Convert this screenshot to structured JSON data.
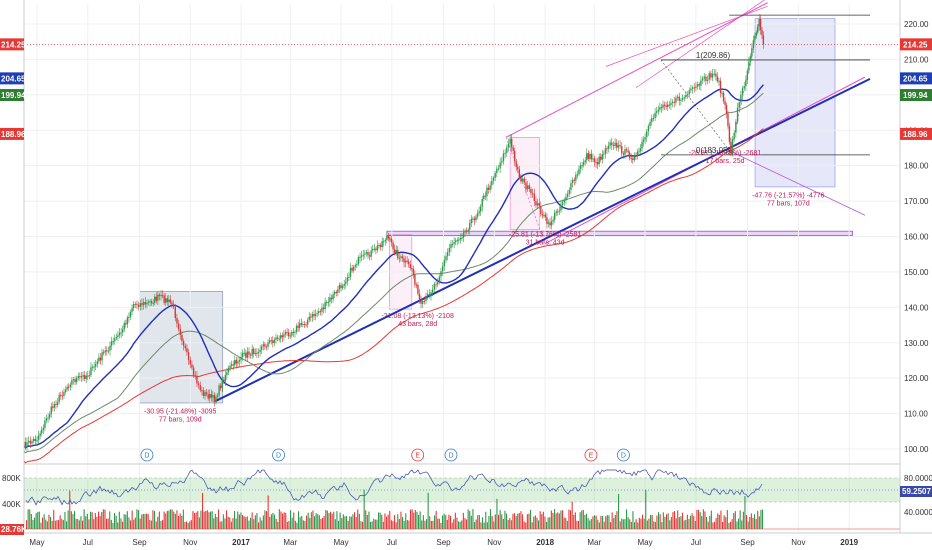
{
  "chart_data": {
    "type": "candlestick",
    "price_axis": {
      "ticks": [
        "100.00",
        "110.00",
        "120.00",
        "130.00",
        "140.00",
        "150.00",
        "160.00",
        "170.00",
        "180.00",
        "190.00",
        "200.00",
        "210.00",
        "220.00"
      ],
      "range": [
        96,
        224
      ]
    },
    "time_axis": {
      "labels": [
        "May",
        "Jul",
        "Sep",
        "Nov",
        "2017",
        "Mar",
        "May",
        "Jul",
        "Sep",
        "Nov",
        "2018",
        "Mar",
        "May",
        "Jul",
        "Sep",
        "Nov",
        "2019"
      ],
      "bold_labels": [
        "2017",
        "2018",
        "2019"
      ]
    },
    "price_tags": [
      {
        "value": "214.25",
        "color": "#e53935"
      },
      {
        "value": "204.65",
        "color": "#1e3fb4"
      },
      {
        "value": "199.94",
        "color": "#2e7d32"
      },
      {
        "value": "188.96",
        "color": "#e53935"
      }
    ],
    "annotations": [
      {
        "lines": [
          "-30.95 (-21.48%) -3095",
          "77 bars, 109d"
        ],
        "color": "#b00020"
      },
      {
        "lines": [
          "-21.08 (-13.13%) -2108",
          "43 bars, 28d"
        ],
        "color": "#c2185b"
      },
      {
        "lines": [
          "-25.81 (-13.76%) -2581",
          "31 bars, 43d"
        ],
        "color": "#c2185b"
      },
      {
        "lines": [
          "-26.81 (-13.78%) -2681",
          "17 bars, 25d"
        ],
        "color": "#c2185b"
      },
      {
        "lines": [
          "-47.76 (-21.57%) -4776",
          "77 bars, 107d"
        ],
        "color": "#b00020"
      }
    ],
    "fib_levels": [
      {
        "label": "1(209.86)",
        "value": 209.86
      },
      {
        "label": "0(183.05)",
        "value": 183.05
      }
    ],
    "events": [
      "D",
      "D",
      "E",
      "D",
      "E",
      "D"
    ],
    "price_path": [
      [
        "2016-04-15",
        101
      ],
      [
        "2016-05-01",
        103
      ],
      [
        "2016-05-20",
        112
      ],
      [
        "2016-06-10",
        119
      ],
      [
        "2016-07-01",
        121
      ],
      [
        "2016-07-20",
        127
      ],
      [
        "2016-08-10",
        133
      ],
      [
        "2016-08-25",
        141
      ],
      [
        "2016-09-10",
        141
      ],
      [
        "2016-09-25",
        143
      ],
      [
        "2016-10-10",
        141
      ],
      [
        "2016-10-20",
        133
      ],
      [
        "2016-11-01",
        123
      ],
      [
        "2016-11-15",
        116
      ],
      [
        "2016-11-30",
        114
      ],
      [
        "2016-12-15",
        122
      ],
      [
        "2017-01-01",
        126
      ],
      [
        "2017-01-20",
        128
      ],
      [
        "2017-02-10",
        131
      ],
      [
        "2017-03-01",
        133
      ],
      [
        "2017-03-20",
        136
      ],
      [
        "2017-04-10",
        140
      ],
      [
        "2017-05-01",
        146
      ],
      [
        "2017-05-20",
        153
      ],
      [
        "2017-06-10",
        156
      ],
      [
        "2017-06-25",
        160
      ],
      [
        "2017-07-10",
        154
      ],
      [
        "2017-07-25",
        151
      ],
      [
        "2017-08-05",
        140
      ],
      [
        "2017-08-15",
        144
      ],
      [
        "2017-08-25",
        148
      ],
      [
        "2017-09-10",
        158
      ],
      [
        "2017-09-25",
        161
      ],
      [
        "2017-10-10",
        166
      ],
      [
        "2017-10-25",
        174
      ],
      [
        "2017-11-10",
        182
      ],
      [
        "2017-11-20",
        187
      ],
      [
        "2017-12-01",
        177
      ],
      [
        "2017-12-15",
        172
      ],
      [
        "2017-12-25",
        168
      ],
      [
        "2018-01-05",
        163
      ],
      [
        "2018-01-20",
        169
      ],
      [
        "2018-02-05",
        176
      ],
      [
        "2018-02-20",
        183
      ],
      [
        "2018-03-05",
        181
      ],
      [
        "2018-03-20",
        187
      ],
      [
        "2018-04-05",
        184
      ],
      [
        "2018-04-20",
        182
      ],
      [
        "2018-05-01",
        188
      ],
      [
        "2018-05-15",
        196
      ],
      [
        "2018-05-30",
        198
      ],
      [
        "2018-06-15",
        199
      ],
      [
        "2018-07-01",
        202
      ],
      [
        "2018-07-15",
        205
      ],
      [
        "2018-07-25",
        206
      ],
      [
        "2018-08-05",
        197
      ],
      [
        "2018-08-12",
        184
      ],
      [
        "2018-08-20",
        196
      ],
      [
        "2018-08-30",
        205
      ],
      [
        "2018-09-08",
        216
      ],
      [
        "2018-09-15",
        221
      ],
      [
        "2018-09-20",
        214.25
      ]
    ],
    "indicator": {
      "rsi_ticks": [
        "80.0000",
        "60.0000",
        "40.0000"
      ],
      "rsi_value": "59.2507",
      "volume_ticks": [
        "800K",
        "400K"
      ],
      "volume_value": "28.76K",
      "rsi_value_color": "#3949ab",
      "volume_value_color": "#e53935"
    }
  }
}
